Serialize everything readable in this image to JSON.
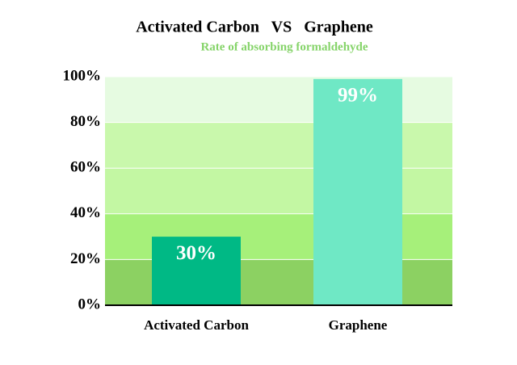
{
  "chart_data": {
    "type": "bar",
    "title": "Activated Carbon   VS   Graphene",
    "subtitle": "Rate of absorbing formaldehyde",
    "categories": [
      "Activated Carbon",
      "Graphene"
    ],
    "values": [
      30,
      99
    ],
    "value_labels": [
      "30%",
      "99%"
    ],
    "colors": [
      "#00b985",
      "#6fe8c5"
    ],
    "ylim": [
      0,
      100
    ],
    "yticks": [
      {
        "value": 0,
        "label": "0%"
      },
      {
        "value": 20,
        "label": "20%"
      },
      {
        "value": 40,
        "label": "40%"
      },
      {
        "value": 60,
        "label": "60%"
      },
      {
        "value": 80,
        "label": "80%"
      },
      {
        "value": 100,
        "label": "100%"
      }
    ],
    "band_colors": [
      "#8cd162",
      "#a6f07a",
      "#c3f7a3",
      "#c9f8ac",
      "#e6fbe1"
    ]
  }
}
